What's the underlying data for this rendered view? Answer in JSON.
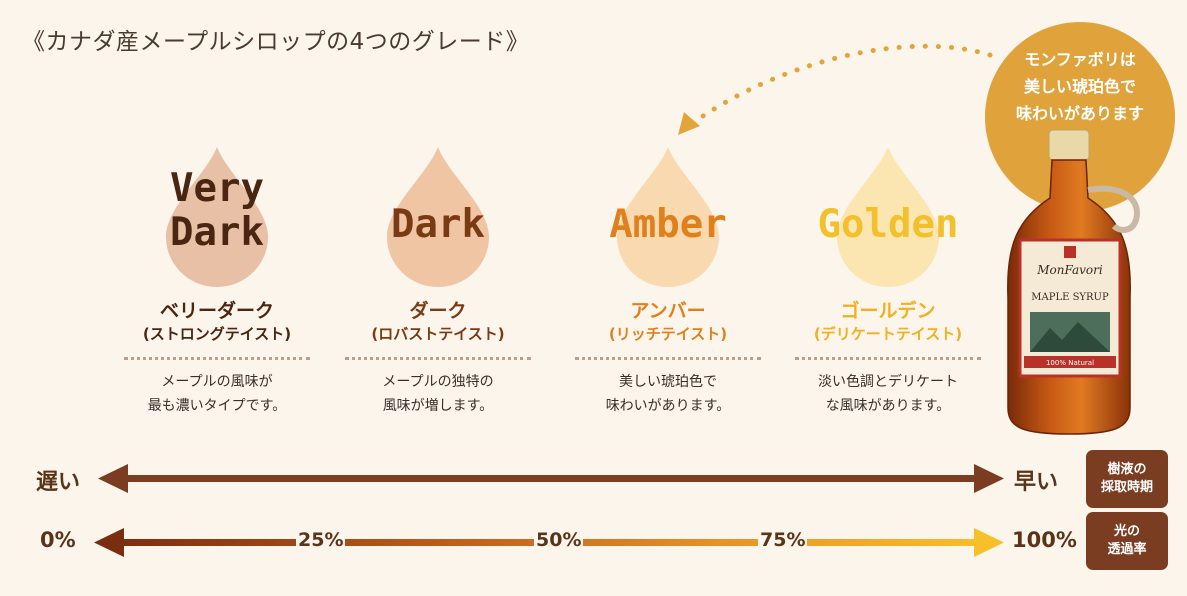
{
  "title": "《カナダ産メープルシロップの4つのグレード》",
  "grades": [
    {
      "label": "Very\nDark",
      "name": "ベリーダーク",
      "sub": "(ストロングテイスト)",
      "desc": "メープルの風味が\n最も濃いタイプです。",
      "drop_color": "#e7c0a6",
      "label_color": "#4a2512",
      "name_color": "#4a2512"
    },
    {
      "label": "Dark",
      "name": "ダーク",
      "sub": "(ロバストテイスト)",
      "desc": "メープルの独特の\n風味が増します。",
      "drop_color": "#efc5a4",
      "label_color": "#7a3a14",
      "name_color": "#7a3a14"
    },
    {
      "label": "Amber",
      "name": "アンバー",
      "sub": "(リッチテイスト)",
      "desc": "美しい琥珀色で\n味わいがあります。",
      "drop_color": "#f9d9b0",
      "label_color": "#e0801c",
      "name_color": "#e0801c"
    },
    {
      "label": "Golden",
      "name": "ゴールデン",
      "sub": "(デリケートテイスト)",
      "desc": "淡い色調とデリケート\nな風味があります。",
      "drop_color": "#fbe6b2",
      "label_color": "#f2c02a",
      "name_color": "#f0b020"
    }
  ],
  "bubble": {
    "text": "モンファボリは\n美しい琥珀色で\n味わいがあります",
    "color": "#e0a33c"
  },
  "bottle": {
    "brand": "MonFavori",
    "product": "MAPLE SYRUP",
    "badge": "100% Natural"
  },
  "harvest_axis": {
    "left": "遅い",
    "right": "早い",
    "tag": "樹液の\n採取時期"
  },
  "transmittance_axis": {
    "ticks": [
      "0%",
      "25%",
      "50%",
      "75%",
      "100%"
    ],
    "tag": "光の\n透過率"
  }
}
